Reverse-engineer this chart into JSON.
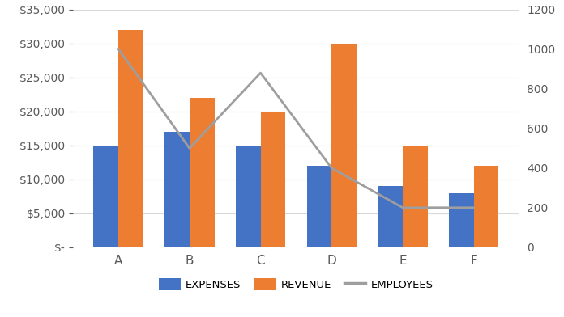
{
  "categories": [
    "A",
    "B",
    "C",
    "D",
    "E",
    "F"
  ],
  "expenses": [
    15000,
    17000,
    15000,
    12000,
    9000,
    8000
  ],
  "revenue": [
    32000,
    22000,
    20000,
    30000,
    15000,
    12000
  ],
  "employees": [
    1000,
    500,
    880,
    400,
    200,
    200
  ],
  "bar_color_expenses": "#4472C4",
  "bar_color_revenue": "#ED7D31",
  "line_color_employees": "#9E9E9E",
  "background_color": "#FFFFFF",
  "plot_bg_color": "#FFFFFF",
  "left_ylim": [
    0,
    35000
  ],
  "right_ylim": [
    0,
    1200
  ],
  "left_yticks": [
    0,
    5000,
    10000,
    15000,
    20000,
    25000,
    30000,
    35000
  ],
  "right_yticks": [
    0,
    200,
    400,
    600,
    800,
    1000,
    1200
  ],
  "legend_labels": [
    "EXPENSES",
    "REVENUE",
    "EMPLOYEES"
  ],
  "grid_color": "#D9D9D9",
  "spine_color": "#D9D9D9",
  "tick_label_color": "#595959",
  "figsize": [
    6.96,
    3.92
  ],
  "dpi": 100,
  "bar_width": 0.35
}
